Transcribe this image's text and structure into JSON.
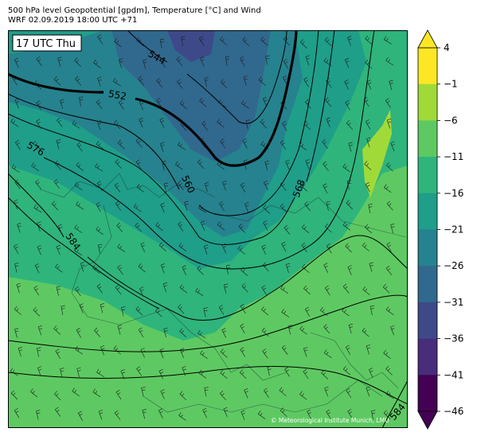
{
  "header": {
    "title": "500 hPa level Geopotential [gpdm], Temperature [°C] and Wind",
    "subtitle": "WRF 02.09.2019 18:00 UTC +71"
  },
  "map": {
    "time_label": "17 UTC Thu",
    "copyright": "© Meteorological Institute Munich, LMU",
    "contour_labels": [
      "544",
      "552",
      "560",
      "568",
      "576",
      "584",
      "584"
    ]
  },
  "colorbar": {
    "labels": [
      "4",
      "−1",
      "−6",
      "−11",
      "−16",
      "−21",
      "−26",
      "−31",
      "−36",
      "−41",
      "−46"
    ],
    "colors_top_to_bottom": [
      "#fde725",
      "#a0da39",
      "#5ec962",
      "#2fb47c",
      "#1f9e89",
      "#26828e",
      "#31688e",
      "#3e4989",
      "#472d7b",
      "#440154"
    ]
  },
  "palette": {
    "t_m6": "#5ec962",
    "t_m11": "#2fb47c",
    "t_m16": "#1f9e89",
    "t_m21": "#26828e",
    "t_m26": "#31688e",
    "t_m1": "#a0da39"
  }
}
